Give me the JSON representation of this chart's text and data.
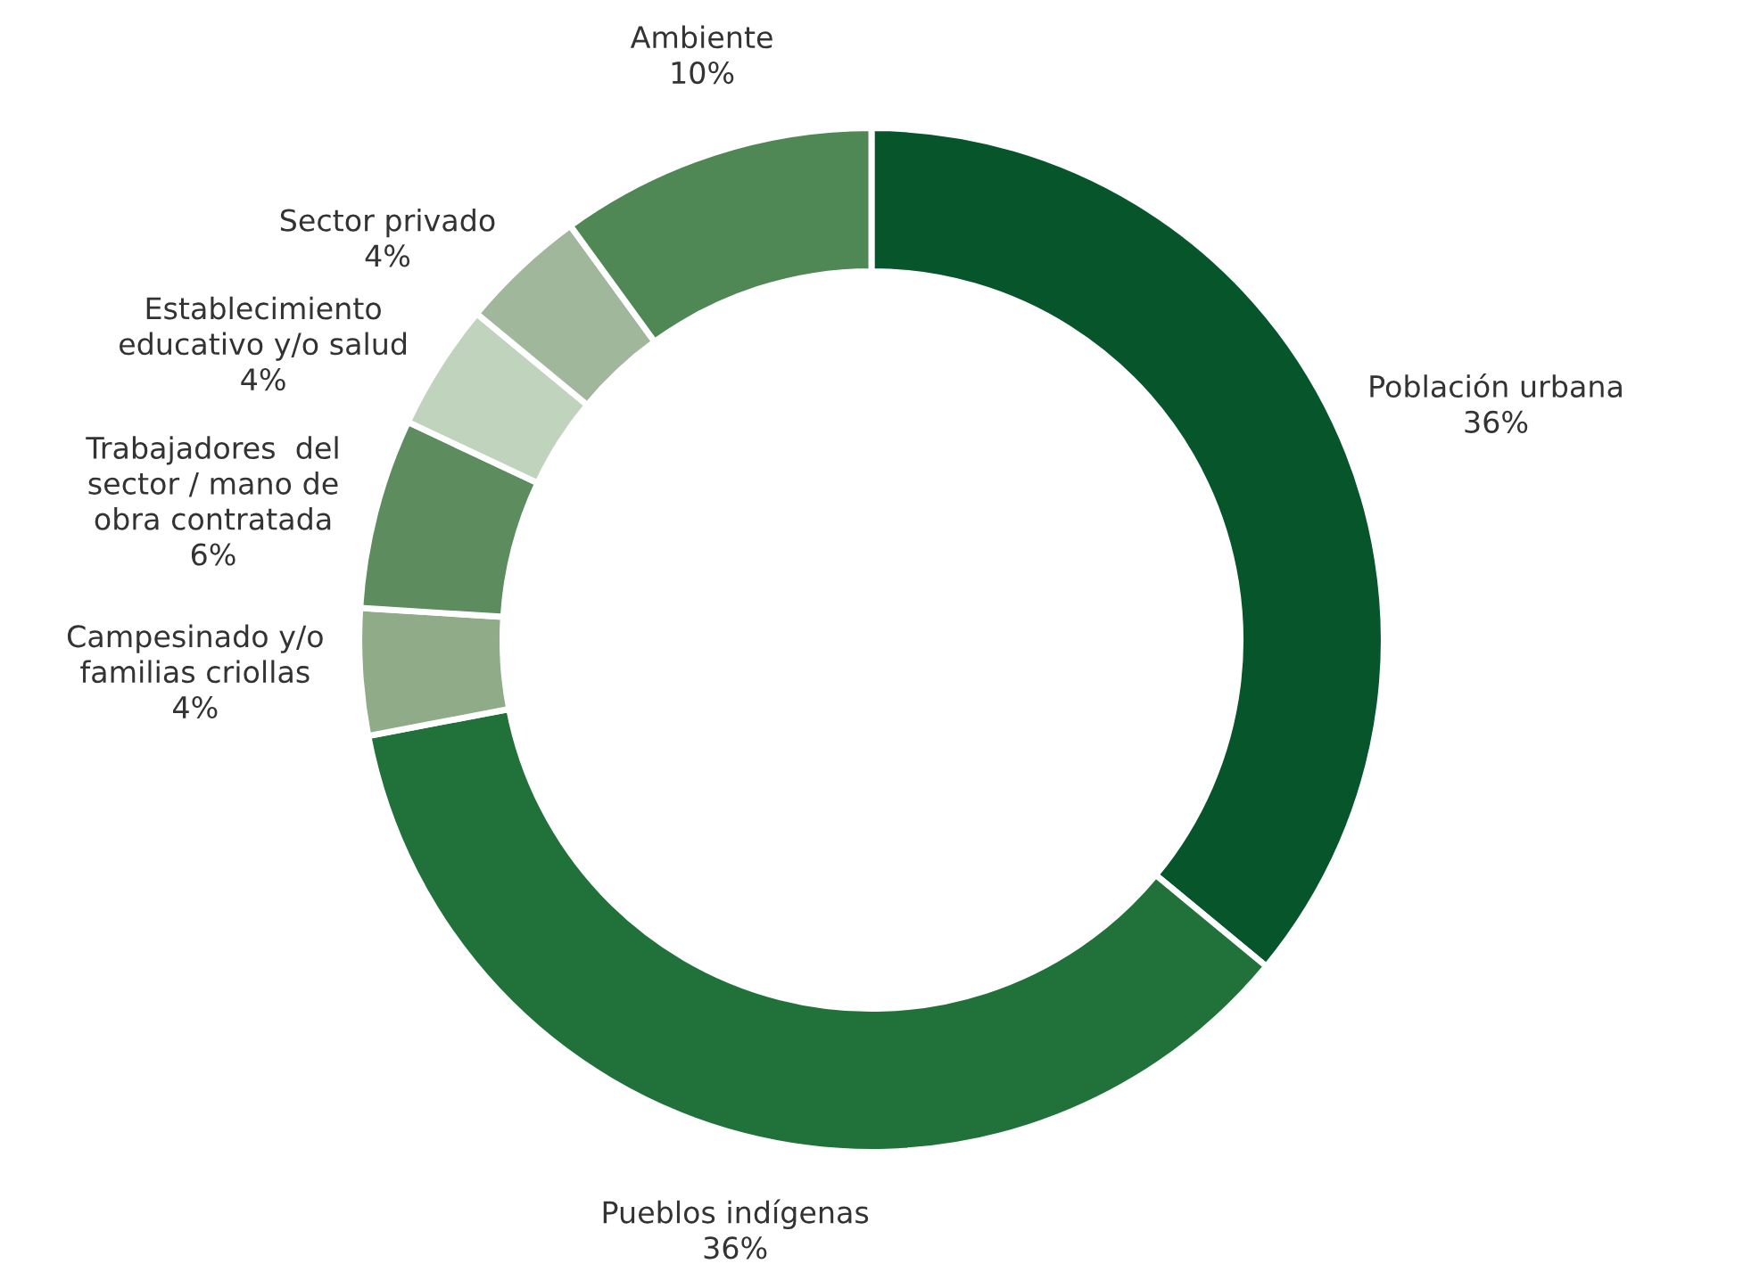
{
  "chart_data": {
    "type": "donut",
    "categories": [
      "Población urbana",
      "Pueblos indígenas",
      "Campesinado y/o\nfamilias criollas",
      "Trabajadores  del\nsector / mano de\nobra contratada",
      "Establecimiento\neducativo y/o salud",
      "Sector privado",
      "Ambiente"
    ],
    "values": [
      36,
      36,
      4,
      6,
      4,
      4,
      10
    ],
    "value_labels": [
      "36%",
      "36%",
      "4%",
      "6%",
      "4%",
      "4%",
      "10%"
    ],
    "colors": [
      "#07562b",
      "#21723a",
      "#8fab88",
      "#5d8c5e",
      "#c0d3bd",
      "#a1b79c",
      "#4f8755"
    ]
  }
}
